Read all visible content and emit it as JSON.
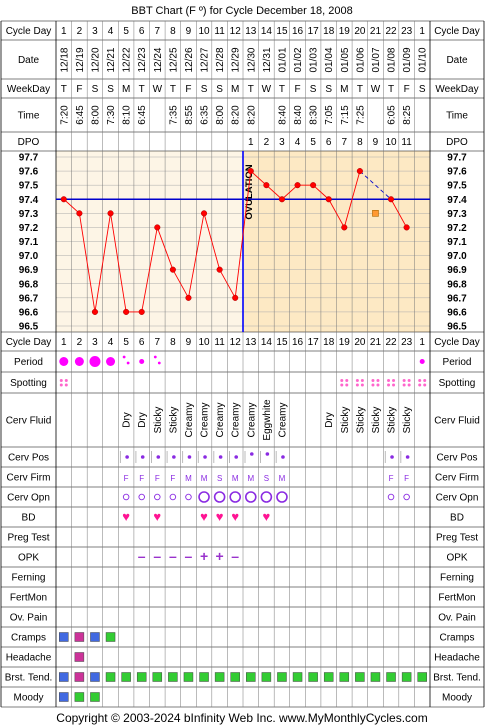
{
  "title": "BBT Chart (F º) for Cycle December 18, 2008",
  "footer": "Copyright © 2003-2024 bInfinity Web Inc.     www.MyMonthlyCycles.com",
  "row_labels": {
    "cycle_day": "Cycle Day",
    "date": "Date",
    "weekday": "WeekDay",
    "time": "Time",
    "dpo": "DPO",
    "period": "Period",
    "spotting": "Spotting",
    "cerv_fluid": "Cerv Fluid",
    "cerv_pos": "Cerv Pos",
    "cerv_firm": "Cerv Firm",
    "cerv_opn": "Cerv Opn",
    "bd": "BD",
    "preg_test": "Preg Test",
    "opk": "OPK",
    "ferning": "Ferning",
    "fertmon": "FertMon",
    "ov_pain": "Ov. Pain",
    "cramps": "Cramps",
    "headache": "Headache",
    "brst_tend": "Brst. Tend.",
    "moody": "Moody"
  },
  "ovulation_label": "OVULATION",
  "colors": {
    "grid": "#000000",
    "chart_bg": "#fdf5e6",
    "luteal_bg": "#fde9c4",
    "temp_line": "#ff0000",
    "coverline": "#0000cc",
    "ovulation_line": "#0000ff",
    "period": "#ff00ff",
    "cervpos": "#8a2be2",
    "opk": "#9932cc",
    "bd": "#ff1493",
    "spot": "#ff66cc",
    "sym_blue": "#4169e1",
    "sym_magenta": "#cc3399",
    "sym_green": "#33cc33",
    "orange": "#ff9933"
  },
  "cycle_days": [
    "1",
    "2",
    "3",
    "4",
    "5",
    "6",
    "7",
    "8",
    "9",
    "10",
    "11",
    "12",
    "13",
    "14",
    "15",
    "16",
    "17",
    "18",
    "19",
    "20",
    "21",
    "22",
    "23",
    "1"
  ],
  "dates": [
    "12/18",
    "12/19",
    "12/20",
    "12/21",
    "12/22",
    "12/23",
    "12/24",
    "12/25",
    "12/26",
    "12/27",
    "12/28",
    "12/29",
    "12/30",
    "12/31",
    "01/01",
    "01/02",
    "01/03",
    "01/04",
    "01/05",
    "01/06",
    "01/07",
    "01/08",
    "01/09",
    "01/10"
  ],
  "weekdays": [
    "T",
    "F",
    "S",
    "S",
    "M",
    "T",
    "W",
    "T",
    "F",
    "S",
    "S",
    "M",
    "T",
    "W",
    "T",
    "F",
    "S",
    "S",
    "M",
    "T",
    "W",
    "T",
    "F",
    "S"
  ],
  "times": [
    "7:20",
    "6:45",
    "8:00",
    "7:30",
    "8:10",
    "6:45",
    "",
    "7:35",
    "8:55",
    "6:35",
    "8:00",
    "8:20",
    "8:20",
    "",
    "8:40",
    "8:40",
    "8:30",
    "7:05",
    "7:15",
    "7:25",
    "",
    "6:05",
    "8:25",
    ""
  ],
  "dpo": [
    "",
    "",
    "",
    "",
    "",
    "",
    "",
    "",
    "",
    "",
    "",
    "",
    "1",
    "2",
    "3",
    "4",
    "5",
    "6",
    "7",
    "8",
    "9",
    "10",
    "11",
    ""
  ],
  "cerv_fluid": [
    "",
    "",
    "",
    "",
    "Dry",
    "Dry",
    "Sticky",
    "Sticky",
    "Creamy",
    "Creamy",
    "Creamy",
    "Creamy",
    "Creamy",
    "Eggwhite",
    "Creamy",
    "",
    "",
    "Dry",
    "Sticky",
    "Sticky",
    "Sticky",
    "Sticky",
    "Sticky",
    ""
  ],
  "cerv_firm": [
    "",
    "",
    "",
    "",
    "F",
    "F",
    "F",
    "F",
    "M",
    "M",
    "S",
    "M",
    "M",
    "S",
    "M",
    "",
    "",
    "",
    "",
    "",
    "",
    "F",
    "F",
    ""
  ],
  "chart_data": {
    "type": "line",
    "x": [
      1,
      2,
      3,
      4,
      5,
      6,
      7,
      8,
      9,
      10,
      11,
      12,
      13,
      14,
      15,
      16,
      17,
      18,
      19,
      20,
      21,
      22,
      23
    ],
    "temps": [
      97.4,
      97.3,
      96.6,
      97.3,
      96.6,
      96.6,
      97.2,
      96.9,
      96.7,
      97.3,
      96.9,
      96.7,
      97.6,
      97.5,
      97.4,
      97.5,
      97.5,
      97.4,
      97.2,
      97.6,
      null,
      97.4,
      97.2
    ],
    "open_marker": {
      "day": 21,
      "temp": 97.3
    },
    "coverline": 97.4,
    "ovulation_day": 12,
    "ylim": [
      96.5,
      97.7
    ],
    "yticks": [
      "97.7",
      "97.6",
      "97.5",
      "97.4",
      "97.3",
      "97.2",
      "97.1",
      "97.0",
      "96.9",
      "96.8",
      "96.7",
      "96.6",
      "96.5"
    ],
    "grid": true
  },
  "rows": {
    "period": {
      "1": "heavy",
      "2": "heavy",
      "3": "xheavy",
      "4": "heavy",
      "5": "spot",
      "6": "light",
      "7": "spot",
      "24": "light"
    },
    "spotting": [
      1,
      19,
      20,
      21,
      22,
      23,
      24
    ],
    "cerv_pos": [
      5,
      6,
      7,
      8,
      9,
      10,
      11,
      12,
      13,
      14,
      15,
      22,
      23
    ],
    "cerv_opn": {
      "5": "s",
      "6": "s",
      "7": "s",
      "8": "s",
      "9": "s",
      "10": "l",
      "11": "l",
      "12": "l",
      "13": "l",
      "14": "l",
      "15": "l",
      "22": "s",
      "23": "s"
    },
    "bd": [
      5,
      7,
      10,
      11,
      12,
      14
    ],
    "opk": {
      "6": "-",
      "7": "-",
      "8": "-",
      "9": "-",
      "10": "+",
      "11": "+",
      "12": "-"
    },
    "cramps": {
      "1": "blue",
      "2": "magenta",
      "3": "blue",
      "4": "green"
    },
    "headache": {
      "2": "magenta"
    },
    "brst_tend": {
      "1": "blue",
      "2": "magenta",
      "3": "blue",
      "4": "green",
      "5": "green",
      "6": "green",
      "7": "green",
      "8": "green",
      "9": "green",
      "10": "green",
      "11": "green",
      "12": "green",
      "13": "green",
      "14": "green",
      "15": "green",
      "16": "green",
      "17": "green",
      "18": "green",
      "19": "green",
      "20": "green",
      "21": "green",
      "22": "green",
      "23": "green",
      "24": "green"
    },
    "moody": {
      "1": "blue",
      "2": "green",
      "3": "green"
    }
  }
}
